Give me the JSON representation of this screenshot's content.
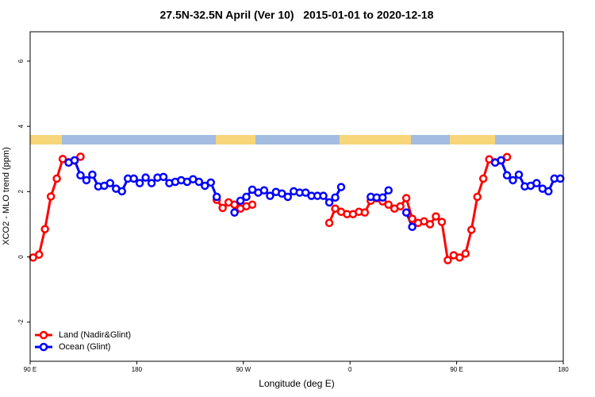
{
  "chart_data": {
    "type": "line",
    "title": "27.5N-32.5N April (Ver 10)   2015-01-01 to 2020-12-18",
    "x_label": "Longitude (deg E)",
    "y_label": "XCO2 - MLO trend (ppm)",
    "xlim": [
      90,
      540
    ],
    "ylim": [
      -3.2,
      6.9
    ],
    "xticks": [
      {
        "value": 90,
        "label": "90 E"
      },
      180,
      {
        "value": 270,
        "label": "90 W"
      },
      {
        "value": 360,
        "label": "0"
      },
      {
        "value": 450,
        "label": "90 E"
      },
      {
        "value": 540,
        "label": "180"
      }
    ],
    "yticks": [
      -2,
      0,
      2,
      4,
      6
    ],
    "legend": "bottom-left",
    "x": [
      92.5,
      97.5,
      102.5,
      107.5,
      112.5,
      117.5,
      122.5,
      127.5,
      132.5,
      137.5,
      142.5,
      147.5,
      152.5,
      157.5,
      162.5,
      167.5,
      172.5,
      177.5,
      182.5,
      187.5,
      192.5,
      197.5,
      202.5,
      207.5,
      212.5,
      217.5,
      222.5,
      227.5,
      232.5,
      237.5,
      242.5,
      247.5,
      252.5,
      257.5,
      262.5,
      267.5,
      272.5,
      277.5,
      282.5,
      287.5,
      292.5,
      297.5,
      302.5,
      307.5,
      312.5,
      317.5,
      322.5,
      327.5,
      332.5,
      337.5,
      342.5,
      347.5,
      352.5,
      357.5,
      362.5,
      367.5,
      372.5,
      377.5,
      382.5,
      387.5,
      392.5,
      397.5,
      402.5,
      407.5,
      412.5,
      417.5,
      422.5,
      427.5,
      432.5,
      437.5,
      442.5,
      447.5,
      452.5,
      457.5,
      462.5,
      467.5,
      472.5,
      477.5,
      482.5,
      487.5,
      492.5,
      497.5,
      502.5,
      507.5,
      512.5,
      517.5,
      522.5,
      527.5,
      532.5,
      537.5
    ],
    "series": [
      {
        "name": "Land (Nadir&Glint)",
        "color": "#ff0000",
        "values": [
          -0.02,
          0.07,
          0.85,
          1.85,
          2.4,
          3.0,
          2.9,
          2.95,
          3.07,
          null,
          null,
          null,
          null,
          null,
          null,
          null,
          null,
          null,
          null,
          null,
          null,
          null,
          null,
          null,
          null,
          null,
          null,
          null,
          null,
          null,
          null,
          1.75,
          1.5,
          1.67,
          1.6,
          1.48,
          1.55,
          1.6,
          null,
          null,
          null,
          null,
          null,
          null,
          null,
          null,
          null,
          null,
          null,
          null,
          1.04,
          1.48,
          1.38,
          1.31,
          1.31,
          1.38,
          1.36,
          1.72,
          1.8,
          1.7,
          1.6,
          1.48,
          1.55,
          1.8,
          1.17,
          1.04,
          1.09,
          1.0,
          1.24,
          1.07,
          -0.1,
          0.05,
          -0.02,
          0.1,
          0.83,
          1.84,
          2.4,
          2.99,
          2.9,
          2.95,
          3.06,
          null,
          null,
          null,
          null,
          null,
          null,
          null,
          null,
          null
        ]
      },
      {
        "name": "Ocean (Glint)",
        "color": "#0000ff",
        "values": [
          null,
          null,
          null,
          null,
          null,
          null,
          2.89,
          2.96,
          2.5,
          2.35,
          2.52,
          2.16,
          2.18,
          2.26,
          2.09,
          2.01,
          2.4,
          2.4,
          2.26,
          2.43,
          2.26,
          2.43,
          2.45,
          2.26,
          2.3,
          2.35,
          2.3,
          2.38,
          2.3,
          2.18,
          2.28,
          1.84,
          null,
          null,
          1.36,
          1.72,
          1.84,
          2.06,
          1.97,
          2.04,
          1.87,
          1.99,
          1.94,
          1.84,
          2.01,
          1.97,
          1.97,
          1.87,
          1.87,
          1.87,
          1.67,
          1.82,
          2.14,
          null,
          null,
          null,
          null,
          1.84,
          1.82,
          1.82,
          2.04,
          null,
          null,
          1.36,
          0.92,
          null,
          null,
          null,
          null,
          null,
          null,
          null,
          null,
          null,
          null,
          null,
          null,
          null,
          2.89,
          2.96,
          2.5,
          2.35,
          2.52,
          2.16,
          2.18,
          2.26,
          2.09,
          2.01,
          2.4,
          2.4
        ]
      }
    ]
  }
}
